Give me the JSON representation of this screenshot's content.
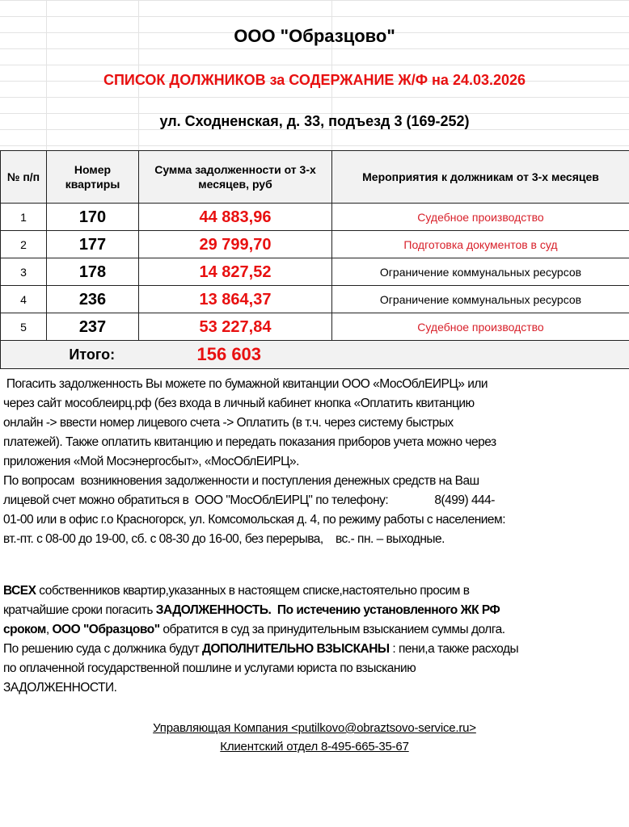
{
  "header": {
    "company": "ООО \"Образцово\"",
    "title": "СПИСОК ДОЛЖНИКОВ за СОДЕРЖАНИЕ Ж/Ф  на 24.03.2026",
    "address": "ул. Сходненская, д. 33, подъезд 3 (169-252)",
    "title_color": "#e81010"
  },
  "table": {
    "columns": [
      "№ п/п",
      "Номер квартиры",
      "Сумма  задолженности от  3-х месяцев, руб",
      "Мероприятия к должникам от 3-х месяцев"
    ],
    "rows": [
      {
        "n": "1",
        "apt": "170",
        "amount": "44 883,96",
        "action": "Судебное производство",
        "action_red": true
      },
      {
        "n": "2",
        "apt": "177",
        "amount": "29 799,70",
        "action": "Подготовка  документов   в суд",
        "action_red": true
      },
      {
        "n": "3",
        "apt": "178",
        "amount": "14 827,52",
        "action": "Ограничение  коммунальных  ресурсов",
        "action_red": false
      },
      {
        "n": "4",
        "apt": "236",
        "amount": "13 864,37",
        "action": "Ограничение  коммунальных  ресурсов",
        "action_red": false
      },
      {
        "n": "5",
        "apt": "237",
        "amount": "53 227,84",
        "action": "Судебное производство",
        "action_red": true
      }
    ],
    "total_label": "Итого:",
    "total_value": "156 603"
  },
  "info_lines": [
    " Погасить задолженность Вы можете по бумажной квитанции ООО «МосОблЕИРЦ» или",
    "через сайт мособлеирц.рф (без входа в личный кабинет кнопка «Оплатить квитанцию",
    "онлайн -> ввести номер лицевого счета -> Оплатить (в т.ч. через систему быстрых",
    "платежей). Также оплатить квитанцию и передать показания приборов учета можно через",
    "приложения «Мой Мосэнергосбыт», «МосОблЕИРЦ».",
    "По вопросам  возникновения задолженности и поступления денежных средств на Ваш",
    "лицевой счет можно обратиться в  ООО \"МосОблЕИРЦ\" по телефону:               8(499) 444-",
    "01-00 или в офис г.о Красногорск, ул. Комсомольская д. 4, по режиму работы с населением:",
    "вт.-пт. с 08-00 до 19-00, сб. с 08-30 до 16-00, без перерыва,    вс.- пн. – выходные."
  ],
  "notice": {
    "l1b": "ВСЕХ",
    "l1": " собственников квартир,указанных в настоящем списке,настоятельно просим в",
    "l2": "кратчайшие сроки погасить ",
    "l2b": "ЗАДОЛЖЕННОСТЬ.  По истечению установленного ЖК РФ",
    "l3b": "сроком",
    "l3": ", ",
    "l3b2": "ООО \"Образцово\"",
    "l3c": " обратится в суд за принудительным взысканием суммы долга.",
    "l4": "По решению суда с должника будут ",
    "l4b": "ДОПОЛНИТЕЛЬНО ВЗЫСКАНЫ",
    "l4c": " : пени,а также расходы",
    "l5": "по оплаченной государственной пошлине и услугами юриста по взысканию",
    "l6": "ЗАДОЛЖЕННОСТИ."
  },
  "footer": {
    "company_line": "Управляющая Компания <putilkovo@obraztsovo-service.ru>",
    "client_line": "Клиентский  отдел  8-495-665-35-67"
  }
}
